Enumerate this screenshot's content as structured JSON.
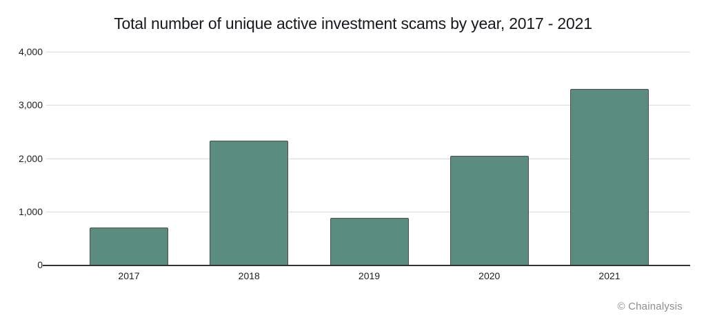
{
  "attribution": "© Chainalysis",
  "colors": {
    "background": "#ffffff",
    "title_text": "#17171f",
    "label_text": "#1e1e1e",
    "gridline": "#d9d9d9",
    "axis": "#333333",
    "bar_fill": "#5a8d80",
    "bar_border": "#4c4c4c",
    "attribution_text": "#8d8d8d"
  },
  "chart_data": {
    "type": "bar",
    "title": "Total number of unique active investment scams by year, 2017 - 2021",
    "categories": [
      "2017",
      "2018",
      "2019",
      "2020",
      "2021"
    ],
    "values": [
      700,
      2330,
      880,
      2050,
      3300
    ],
    "xlabel": "",
    "ylabel": "",
    "ylim": [
      0,
      4000
    ],
    "yticks": [
      0,
      1000,
      2000,
      3000,
      4000
    ],
    "ytick_labels": [
      "0",
      "1,000",
      "2,000",
      "3,000",
      "4,000"
    ],
    "grid": true,
    "legend": false
  }
}
